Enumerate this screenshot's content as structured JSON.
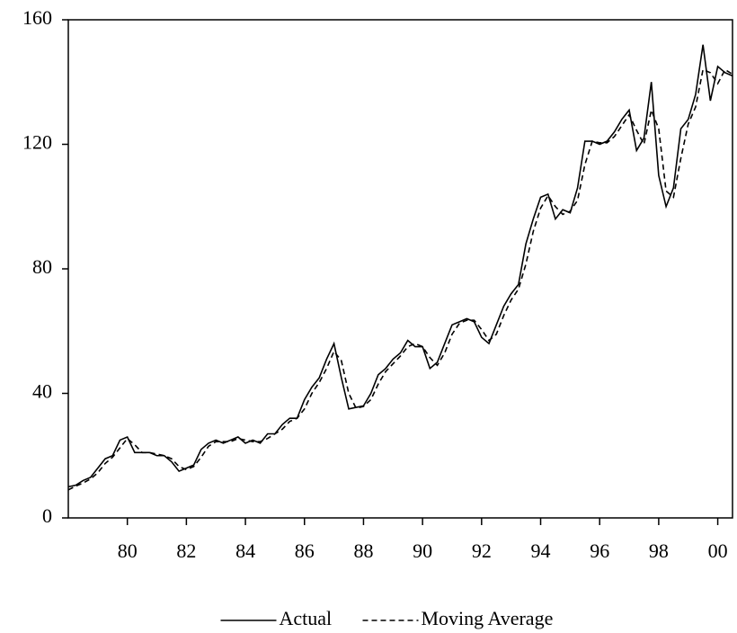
{
  "chart_data": {
    "type": "line",
    "x": [
      1978,
      1978.25,
      1978.5,
      1978.75,
      1979,
      1979.25,
      1979.5,
      1979.75,
      1980,
      1980.25,
      1980.5,
      1980.75,
      1981,
      1981.25,
      1981.5,
      1981.75,
      1982,
      1982.25,
      1982.5,
      1982.75,
      1983,
      1983.25,
      1983.5,
      1983.75,
      1984,
      1984.25,
      1984.5,
      1984.75,
      1985,
      1985.25,
      1985.5,
      1985.75,
      1986,
      1986.25,
      1986.5,
      1986.75,
      1987,
      1987.25,
      1987.5,
      1987.75,
      1988,
      1988.25,
      1988.5,
      1988.75,
      1989,
      1989.25,
      1989.5,
      1989.75,
      1990,
      1990.25,
      1990.5,
      1990.75,
      1991,
      1991.25,
      1991.5,
      1991.75,
      1992,
      1992.25,
      1992.5,
      1992.75,
      1993,
      1993.25,
      1993.5,
      1993.75,
      1994,
      1994.25,
      1994.5,
      1994.75,
      1995,
      1995.25,
      1995.5,
      1995.75,
      1996,
      1996.25,
      1996.5,
      1996.75,
      1997,
      1997.25,
      1997.5,
      1997.75,
      1998,
      1998.25,
      1998.5,
      1998.75,
      1999,
      1999.25,
      1999.5,
      1999.75,
      2000,
      2000.25,
      2000.5
    ],
    "series": [
      {
        "name": "Actual",
        "color": "#000000",
        "style": "solid",
        "values": [
          10,
          10.5,
          12,
          13,
          16,
          19,
          20,
          25,
          26,
          21,
          21,
          21,
          20,
          20,
          18,
          15,
          16,
          17,
          22,
          24,
          25,
          24,
          25,
          26,
          24,
          25,
          24,
          27,
          27,
          30,
          32,
          32,
          38,
          42,
          45,
          51,
          56,
          45,
          35,
          35.5,
          36,
          40,
          46,
          48,
          51,
          53,
          57,
          55,
          55,
          48,
          50,
          56,
          62,
          63,
          64,
          63,
          58,
          56,
          62,
          68,
          72,
          75,
          88,
          96,
          103,
          104,
          96,
          99,
          98,
          106,
          121,
          121,
          120,
          121,
          124,
          128,
          131,
          118,
          122,
          140,
          110,
          100,
          106,
          125,
          128,
          136,
          152,
          134,
          145,
          143,
          142
        ]
      },
      {
        "name": "Moving Average",
        "color": "#000000",
        "style": "dashed",
        "values": [
          9,
          10.2,
          11.2,
          12.5,
          14.5,
          17.5,
          19.5,
          22.5,
          25.5,
          23.5,
          21,
          21,
          20.5,
          20,
          19,
          16.5,
          15.5,
          16.5,
          19.5,
          23,
          24.5,
          24.5,
          24.5,
          25.5,
          25,
          24.5,
          24.5,
          25.5,
          27,
          28.5,
          31,
          32,
          35,
          40,
          43.5,
          48,
          53.5,
          50.5,
          40,
          35.2,
          35.8,
          38,
          43,
          47,
          49.5,
          52,
          55,
          56,
          55,
          51.5,
          49,
          53,
          59,
          62.5,
          63.5,
          63.5,
          60.5,
          57,
          59,
          65,
          70,
          73.5,
          81.5,
          92,
          99.5,
          103.5,
          100,
          97.5,
          98.5,
          102,
          113.5,
          121,
          120.5,
          120.5,
          122.5,
          126,
          129.5,
          124.5,
          120,
          131,
          125,
          105,
          103,
          115.5,
          126.5,
          132,
          144,
          143,
          139.5,
          144,
          142.5
        ]
      }
    ],
    "xlim": [
      1978,
      2000.5
    ],
    "ylim": [
      0,
      160
    ],
    "xticks": [
      {
        "value": 1980,
        "label": "80"
      },
      {
        "value": 1982,
        "label": "82"
      },
      {
        "value": 1984,
        "label": "84"
      },
      {
        "value": 1986,
        "label": "86"
      },
      {
        "value": 1988,
        "label": "88"
      },
      {
        "value": 1990,
        "label": "90"
      },
      {
        "value": 1992,
        "label": "92"
      },
      {
        "value": 1994,
        "label": "94"
      },
      {
        "value": 1996,
        "label": "96"
      },
      {
        "value": 1998,
        "label": "98"
      },
      {
        "value": 2000,
        "label": "00"
      }
    ],
    "yticks": [
      0,
      40,
      80,
      120,
      160
    ],
    "grid": false,
    "legend": "bottom"
  }
}
